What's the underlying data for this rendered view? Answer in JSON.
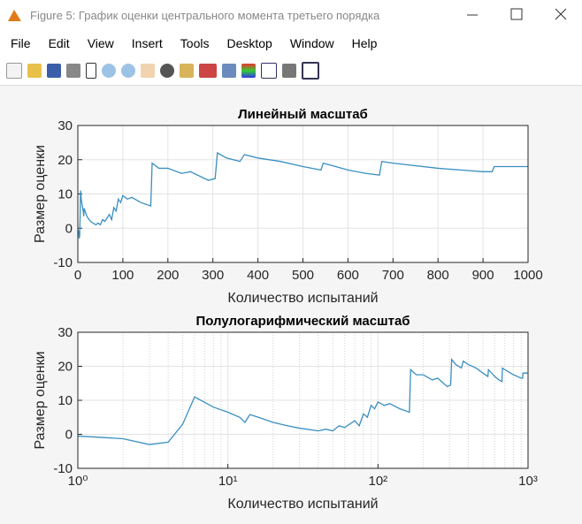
{
  "window": {
    "title": "Figure 5: График оценки центрального момента третьего порядка",
    "menu": [
      "File",
      "Edit",
      "View",
      "Insert",
      "Tools",
      "Desktop",
      "Window",
      "Help"
    ]
  },
  "chart_data": [
    {
      "type": "line",
      "title": "Линейный масштаб",
      "xlabel": "Количество испытаний",
      "ylabel": "Размер оценки",
      "color": "#3a8fc1",
      "grid": true,
      "xscale": "linear",
      "x": [
        1,
        2,
        3,
        4,
        5,
        6,
        8,
        10,
        12,
        13,
        14,
        16,
        20,
        25,
        30,
        40,
        45,
        50,
        55,
        60,
        70,
        75,
        80,
        85,
        90,
        95,
        100,
        110,
        120,
        140,
        162,
        165,
        180,
        200,
        230,
        250,
        290,
        305,
        310,
        330,
        360,
        370,
        400,
        450,
        500,
        540,
        545,
        600,
        640,
        670,
        675,
        700,
        800,
        850,
        900,
        920,
        925,
        1000
      ],
      "values": [
        -0.5,
        -1.3,
        -3,
        -2.3,
        3,
        11,
        8,
        6.5,
        5,
        3.5,
        5.8,
        5,
        3.5,
        2.5,
        1.8,
        1,
        1.5,
        1,
        2.5,
        2,
        4,
        2.5,
        6,
        5,
        8.5,
        7.5,
        9.5,
        8.5,
        9,
        7.5,
        6.5,
        19,
        17.5,
        17.5,
        16,
        16.5,
        14,
        14.5,
        22,
        20.5,
        19.5,
        21.5,
        20.5,
        19.5,
        18,
        17,
        19,
        17,
        16,
        15.5,
        19.5,
        19,
        17.5,
        17,
        16.5,
        16.5,
        18,
        18
      ],
      "xlim": [
        0,
        1000
      ],
      "xticks": [
        0,
        100,
        200,
        300,
        400,
        500,
        600,
        700,
        800,
        900,
        1000
      ],
      "ylim": [
        -10,
        30
      ],
      "yticks": [
        -10,
        0,
        10,
        20,
        30
      ]
    },
    {
      "type": "line",
      "title": "Полулогарифмический масштаб",
      "xlabel": "Количество испытаний",
      "ylabel": "Размер оценки",
      "color": "#3a8fc1",
      "grid": true,
      "minor_grid": true,
      "xscale": "log",
      "x": [
        1,
        2,
        3,
        4,
        5,
        6,
        8,
        10,
        12,
        13,
        14,
        16,
        20,
        25,
        30,
        40,
        45,
        50,
        55,
        60,
        70,
        75,
        80,
        85,
        90,
        95,
        100,
        110,
        120,
        140,
        162,
        165,
        180,
        200,
        230,
        250,
        290,
        305,
        310,
        330,
        360,
        370,
        400,
        450,
        500,
        540,
        545,
        600,
        640,
        670,
        675,
        700,
        800,
        850,
        900,
        920,
        925,
        1000
      ],
      "values": [
        -0.5,
        -1.3,
        -3,
        -2.3,
        3,
        11,
        8,
        6.5,
        5,
        3.5,
        5.8,
        5,
        3.5,
        2.5,
        1.8,
        1,
        1.5,
        1,
        2.5,
        2,
        4,
        2.5,
        6,
        5,
        8.5,
        7.5,
        9.5,
        8.5,
        9,
        7.5,
        6.5,
        19,
        17.5,
        17.5,
        16,
        16.5,
        14,
        14.5,
        22,
        20.5,
        19.5,
        21.5,
        20.5,
        19.5,
        18,
        17,
        19,
        17,
        16,
        15.5,
        19.5,
        19,
        17.5,
        17,
        16.5,
        16.5,
        18,
        18
      ],
      "xlim": [
        1,
        1000
      ],
      "xticks": [
        {
          "value": 1,
          "label": "10⁰"
        },
        {
          "value": 10,
          "label": "10¹"
        },
        {
          "value": 100,
          "label": "10²"
        },
        {
          "value": 1000,
          "label": "10³"
        }
      ],
      "ylim": [
        -10,
        30
      ],
      "yticks": [
        -10,
        0,
        10,
        20,
        30
      ]
    }
  ]
}
